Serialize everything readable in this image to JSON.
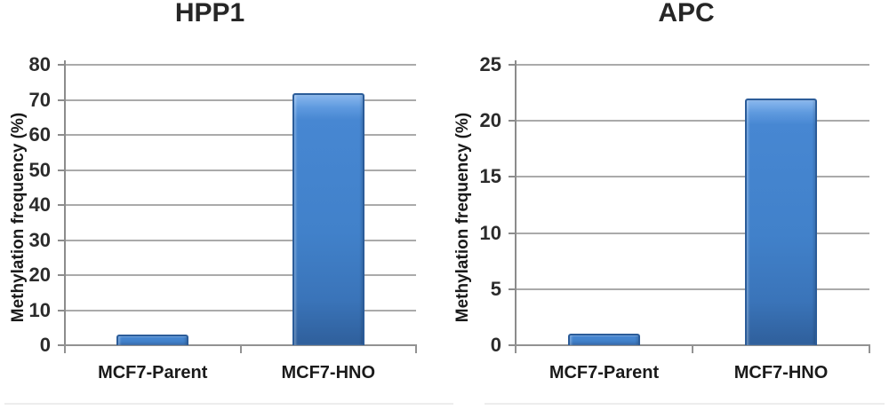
{
  "figure": {
    "background": "#ffffff"
  },
  "chart_data": [
    {
      "type": "bar",
      "title": "HPP1",
      "categories": [
        "MCF7-Parent",
        "MCF7-HNO"
      ],
      "values": [
        3,
        72
      ],
      "xlabel": "",
      "ylabel": "Methylation frequency (%)",
      "ylim": [
        0,
        80
      ],
      "yticks": [
        0,
        10,
        20,
        30,
        40,
        50,
        60,
        70,
        80
      ],
      "grid": true,
      "legend": "none",
      "bar_color": "#4181ca",
      "bar_border_color": "#2b5c99"
    },
    {
      "type": "bar",
      "title": "APC",
      "categories": [
        "MCF7-Parent",
        "MCF7-HNO"
      ],
      "values": [
        1,
        22
      ],
      "xlabel": "",
      "ylabel": "Methylation frequency (%)",
      "ylim": [
        0,
        25
      ],
      "yticks": [
        0,
        5,
        10,
        15,
        20,
        25
      ],
      "grid": true,
      "legend": "none",
      "bar_color": "#4181ca",
      "bar_border_color": "#2b5c99"
    }
  ],
  "colors": {
    "gridline": "#aaaaaa",
    "axis": "#8c8c8c",
    "text": "#262626",
    "bar_fill": "#4181ca",
    "bar_highlight": "#8ab8ee",
    "bar_border": "#2b5c99"
  }
}
